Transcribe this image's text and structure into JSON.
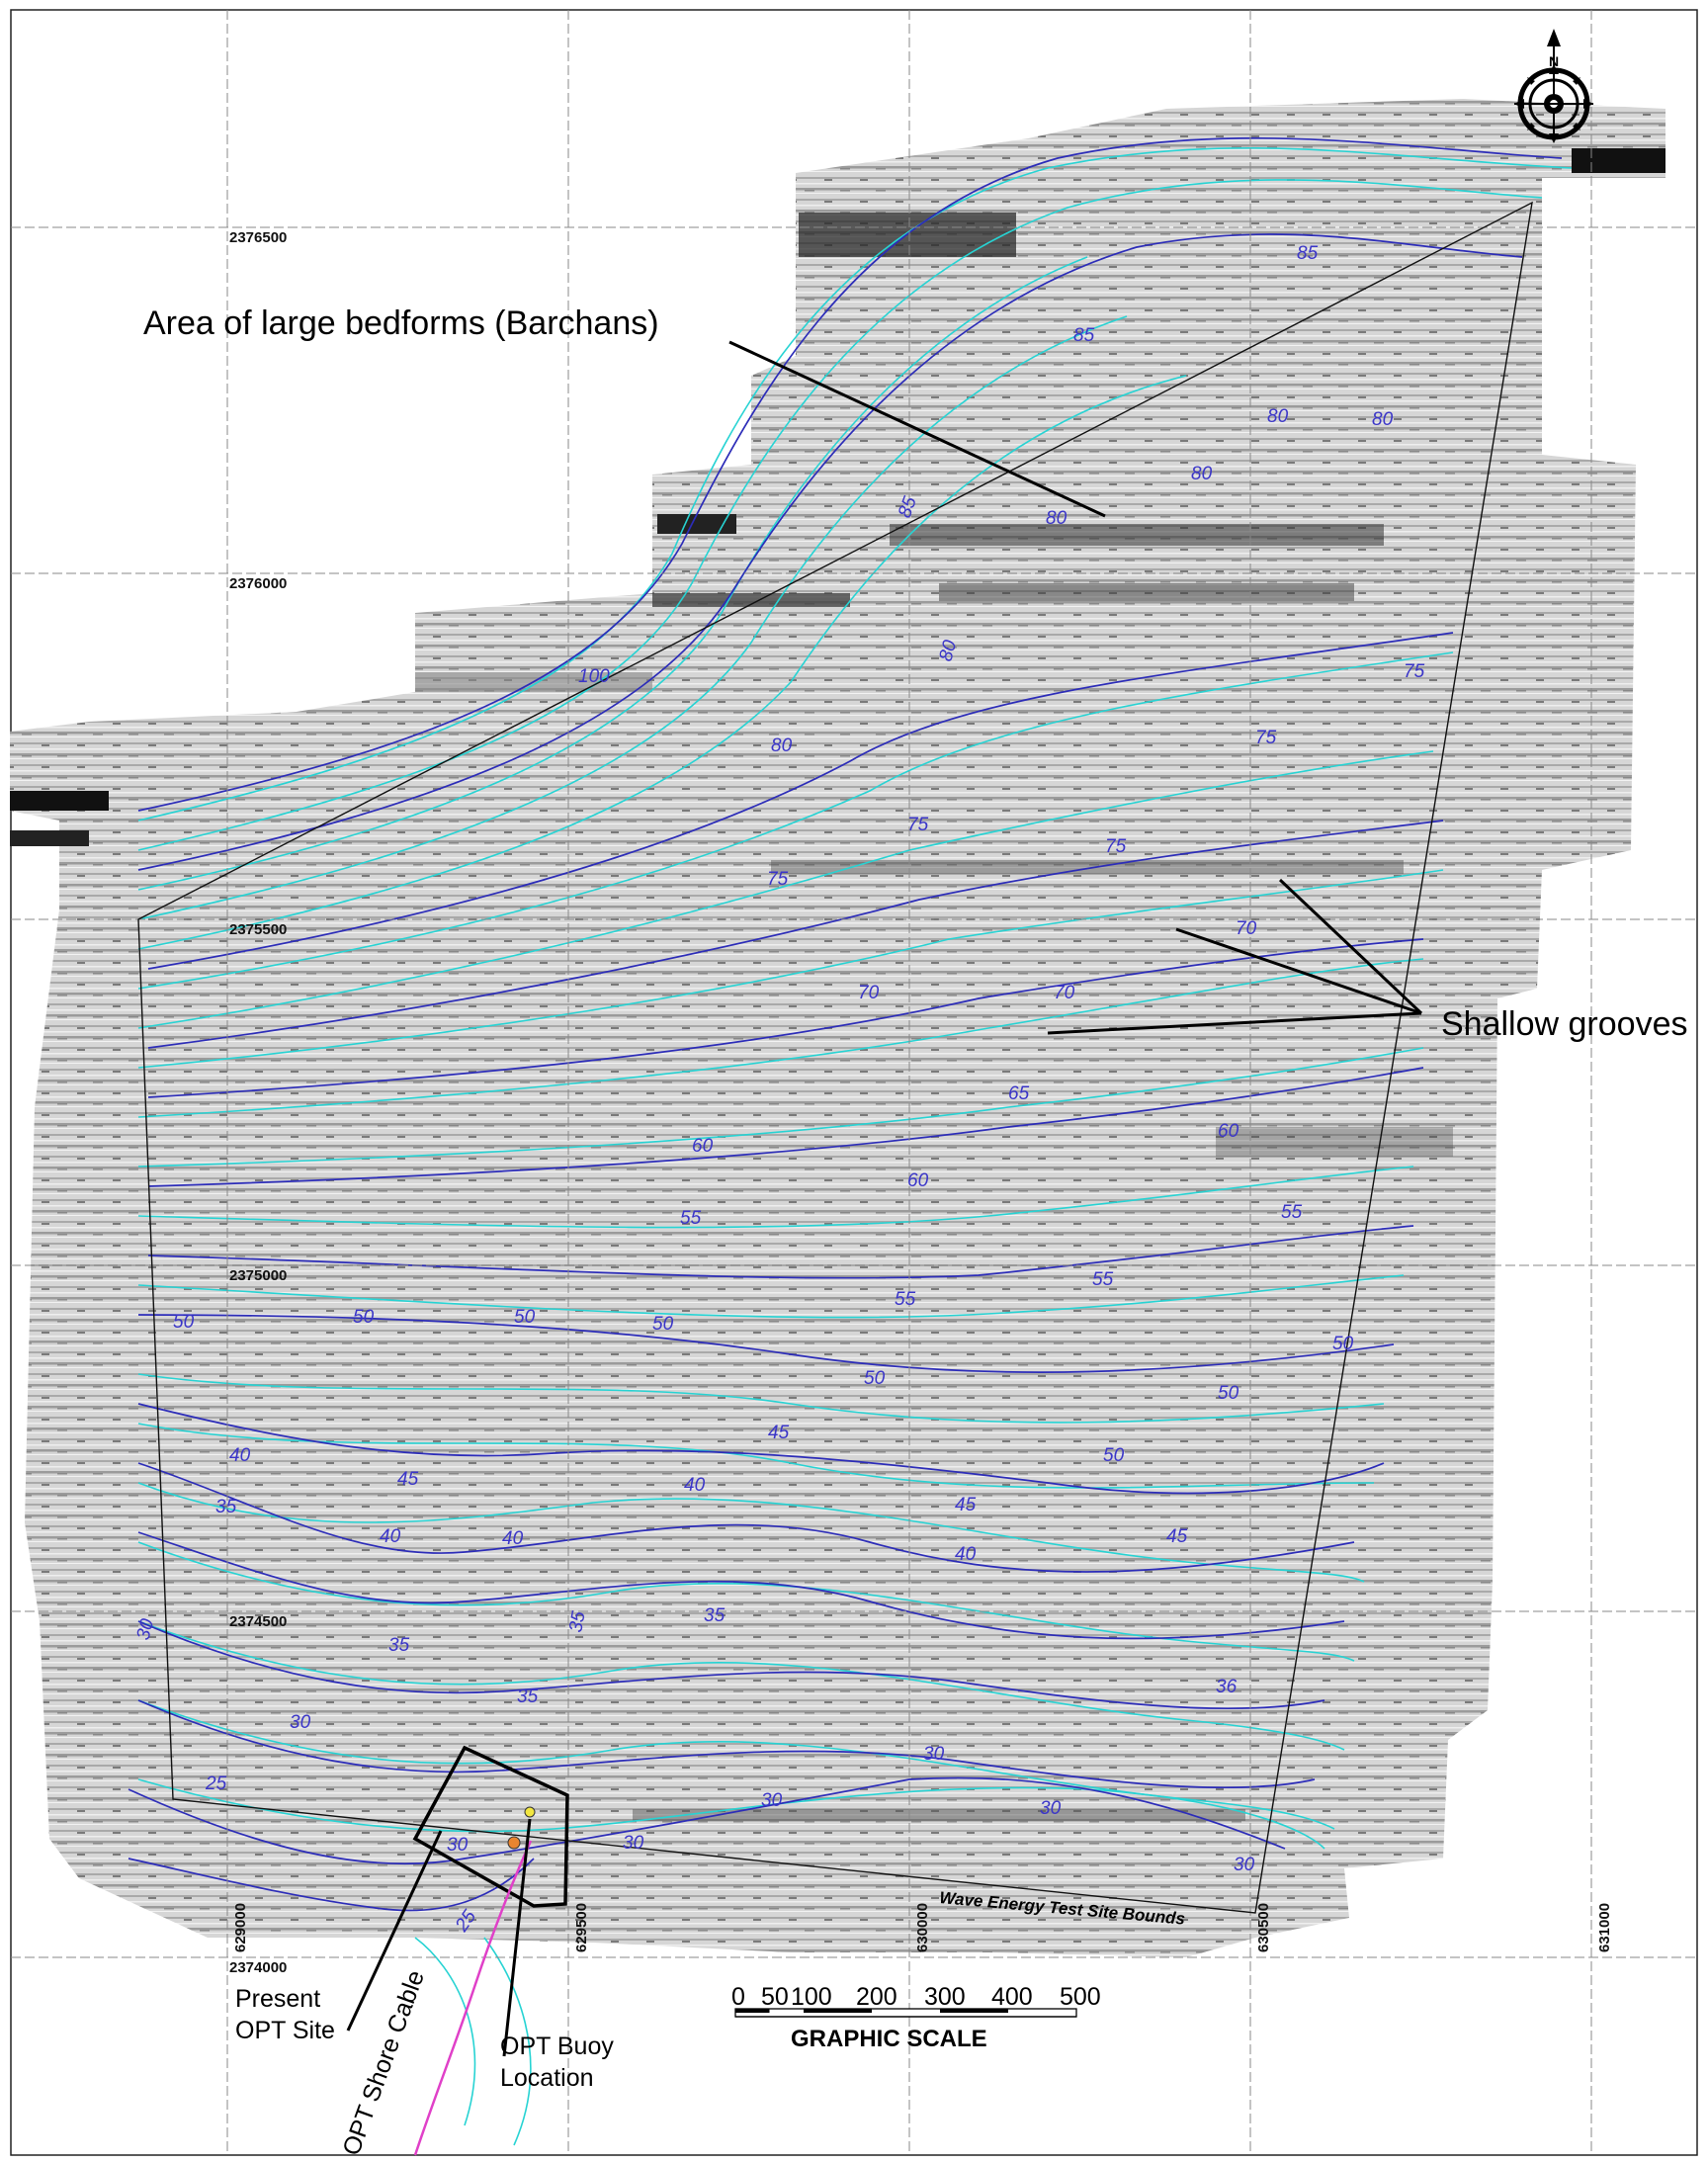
{
  "grid": {
    "northings": [
      "2376500",
      "2376000",
      "2375500",
      "2375000",
      "2374500",
      "2374000"
    ],
    "eastings": [
      "629000",
      "629500",
      "630000",
      "630500",
      "631000"
    ]
  },
  "annotations": {
    "barchans": "Area of large bedforms (Barchans)",
    "grooves": "Shallow grooves",
    "present_site_1": "Present",
    "present_site_2": "OPT Site",
    "shore_cable": "OPT Shore Cable",
    "buoy_1": "OPT Buoy",
    "buoy_2": "Location",
    "bounds": "Wave Energy Test Site Bounds"
  },
  "scale_bar": {
    "title": "GRAPHIC SCALE",
    "ticks": [
      "0",
      "50",
      "100",
      "200",
      "300",
      "400",
      "500"
    ]
  },
  "contours": [
    {
      "label": "85"
    },
    {
      "label": "85"
    },
    {
      "label": "85"
    },
    {
      "label": "80"
    },
    {
      "label": "80"
    },
    {
      "label": "80"
    },
    {
      "label": "80"
    },
    {
      "label": "100"
    },
    {
      "label": "80"
    },
    {
      "label": "80"
    },
    {
      "label": "75"
    },
    {
      "label": "75"
    },
    {
      "label": "75"
    },
    {
      "label": "75"
    },
    {
      "label": "75"
    },
    {
      "label": "70"
    },
    {
      "label": "70"
    },
    {
      "label": "70"
    },
    {
      "label": "65"
    },
    {
      "label": "60"
    },
    {
      "label": "60"
    },
    {
      "label": "60"
    },
    {
      "label": "55"
    },
    {
      "label": "55"
    },
    {
      "label": "55"
    },
    {
      "label": "55"
    },
    {
      "label": "50"
    },
    {
      "label": "50"
    },
    {
      "label": "50"
    },
    {
      "label": "50"
    },
    {
      "label": "50"
    },
    {
      "label": "50"
    },
    {
      "label": "50"
    },
    {
      "label": "50"
    },
    {
      "label": "45"
    },
    {
      "label": "45"
    },
    {
      "label": "45"
    },
    {
      "label": "45"
    },
    {
      "label": "40"
    },
    {
      "label": "40"
    },
    {
      "label": "40"
    },
    {
      "label": "40"
    },
    {
      "label": "40"
    },
    {
      "label": "35"
    },
    {
      "label": "35"
    },
    {
      "label": "35"
    },
    {
      "label": "35"
    },
    {
      "label": "35"
    },
    {
      "label": "36"
    },
    {
      "label": "30"
    },
    {
      "label": "30"
    },
    {
      "label": "30"
    },
    {
      "label": "30"
    },
    {
      "label": "30"
    },
    {
      "label": "30"
    },
    {
      "label": "30"
    },
    {
      "label": "30"
    },
    {
      "label": "25"
    },
    {
      "label": "25"
    }
  ],
  "colors": {
    "grid": "#888888",
    "contour_major": "#2c2cb8",
    "contour_minor": "#27d3d3",
    "cable": "#e040c8",
    "sonar_light": "#d9d9d9",
    "sonar_dark": "#1a1a1a"
  },
  "icons": {
    "north_arrow": "compass-rose-icon"
  }
}
